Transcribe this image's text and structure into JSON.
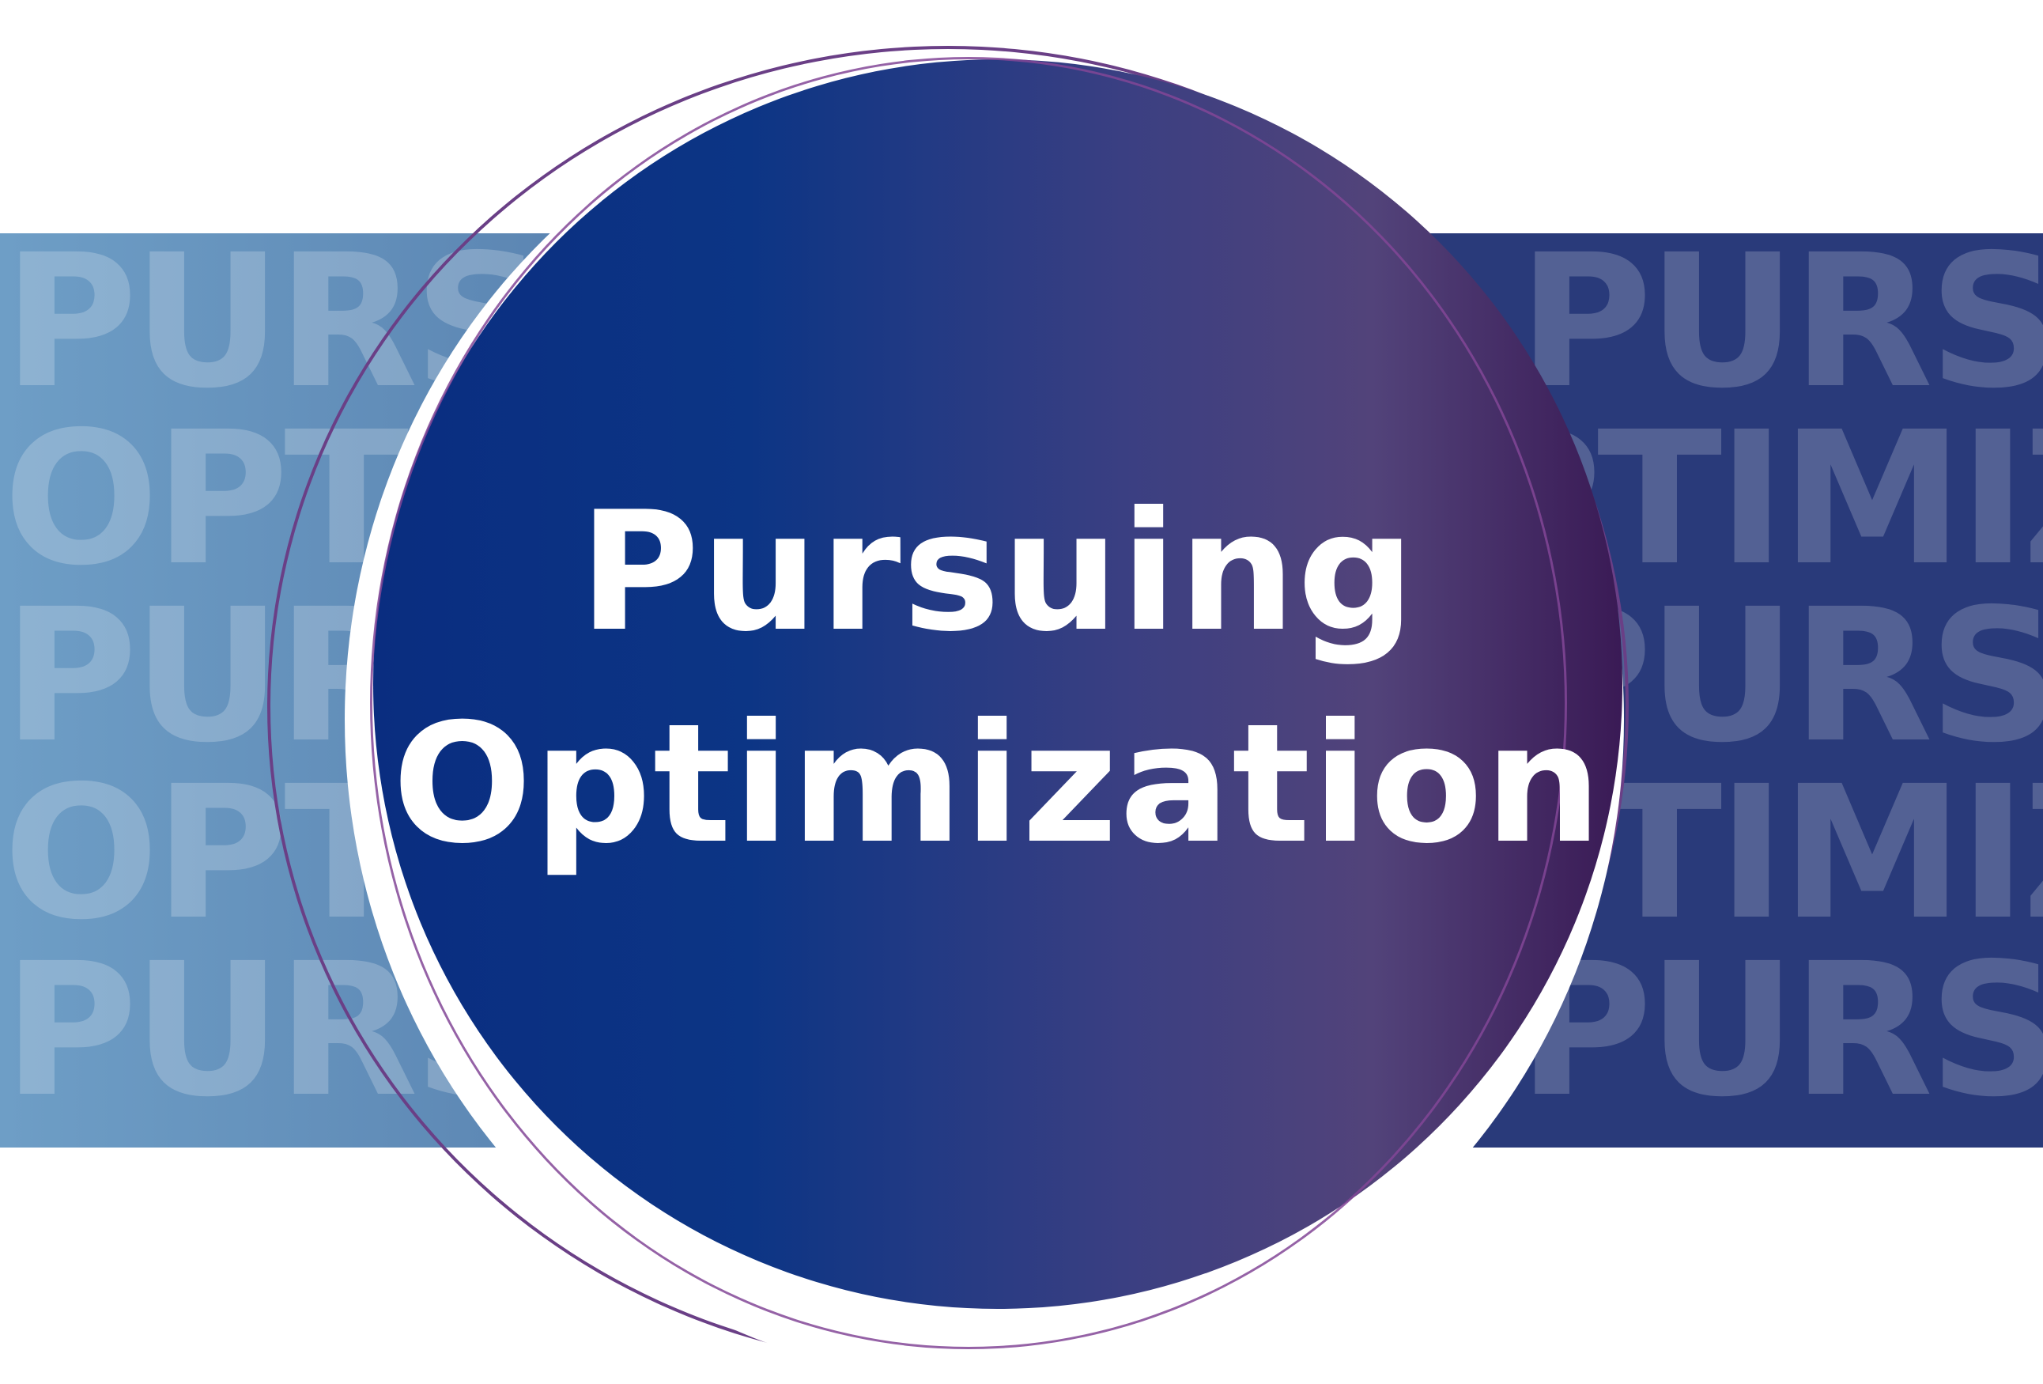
{
  "title": {
    "line1": "Pursuing",
    "line2": "Optimization"
  },
  "background_words": {
    "left": [
      "PURSUI",
      "OPTIM",
      "PURSU",
      "OPTIM",
      "PURSUI"
    ],
    "right": [
      "PURSUI",
      "PTIMIZ",
      "PURSUI",
      "PTIMIZ",
      "PURSUI"
    ]
  },
  "colors": {
    "left_band": "#5f8ab6",
    "right_band": "#293a7a",
    "disc_start": "#0a2d80",
    "disc_end": "#3a1a55",
    "ring": "#6a3f86",
    "text": "#ffffff"
  }
}
